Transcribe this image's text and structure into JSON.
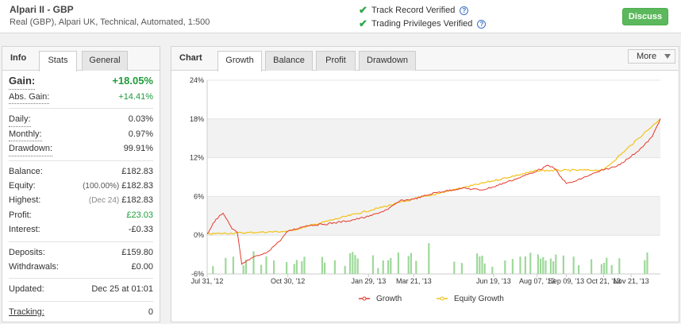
{
  "header": {
    "account_name": "Alpari II - GBP",
    "account_details": "Real (GBP), Alpari UK, Technical, Automated, 1:500",
    "verified_1": "Track Record Verified",
    "verified_2": "Trading Privileges Verified",
    "help_glyph": "?",
    "discuss_label": "Discuss"
  },
  "left": {
    "panel_label": "Info",
    "tabs": [
      "Stats",
      "General"
    ],
    "gain_label": "Gain:",
    "gain_value": "+18.05%",
    "abs_gain_label": "Abs. Gain:",
    "abs_gain_value": "+14.41%",
    "daily_label": "Daily:",
    "daily_value": "0.03%",
    "monthly_label": "Monthly:",
    "monthly_value": "0.97%",
    "drawdown_label": "Drawdown:",
    "drawdown_value": "99.91%",
    "balance_label": "Balance:",
    "balance_value": "£182.83",
    "equity_label": "Equity:",
    "equity_pct": "(100.00%)",
    "equity_value": "£182.83",
    "highest_label": "Highest:",
    "highest_date": "(Dec 24)",
    "highest_value": "£182.83",
    "profit_label": "Profit:",
    "profit_value": "£23.03",
    "interest_label": "Interest:",
    "interest_value": "-£0.33",
    "deposits_label": "Deposits:",
    "deposits_value": "£159.80",
    "withdrawals_label": "Withdrawals:",
    "withdrawals_value": "£0.00",
    "updated_label": "Updated:",
    "updated_value": "Dec 25 at 01:01",
    "tracking_label": "Tracking:",
    "tracking_value": "0"
  },
  "chart_panel": {
    "panel_label": "Chart",
    "tabs": [
      "Growth",
      "Balance",
      "Profit",
      "Drawdown"
    ],
    "more_label": "More"
  },
  "colors": {
    "growth": "#e53b2c",
    "equity": "#f2c218",
    "bars": "#9ed99a",
    "discuss": "#5cb85c"
  },
  "chart_data": {
    "type": "line",
    "ylim": [
      -6,
      24
    ],
    "y_ticks": [
      "24%",
      "18%",
      "12%",
      "6%",
      "0%",
      "-6%"
    ],
    "y_tick_values": [
      24,
      18,
      12,
      6,
      0,
      -6
    ],
    "x_ticks": [
      "Jul 31, '12",
      "Oct 30, '12",
      "Jan 29, '13",
      "Mar 21, '13",
      "Jun 19, '13",
      "Aug 07, '13",
      "Sep 09, '13",
      "Oct 21, '13",
      "Nov 21, '13"
    ],
    "x_range": [
      "Jul 31, '12",
      "Dec 24, '13"
    ],
    "legend": [
      "Growth",
      "Equity Growth"
    ],
    "legend_position": "bottom",
    "series": [
      {
        "name": "Growth",
        "points": [
          {
            "x": "Jul 31, '12",
            "y": 0.2
          },
          {
            "x": "Aug 10, '12",
            "y": 2.5
          },
          {
            "x": "Aug 18, '12",
            "y": 3.4
          },
          {
            "x": "Aug 28, '12",
            "y": 1.0
          },
          {
            "x": "Sep 03, '12",
            "y": 0.4
          },
          {
            "x": "Sep 08, '12",
            "y": -4.5
          },
          {
            "x": "Sep 20, '12",
            "y": -3.5
          },
          {
            "x": "Oct 05, '12",
            "y": -2.8
          },
          {
            "x": "Oct 20, '12",
            "y": -1.0
          },
          {
            "x": "Oct 30, '12",
            "y": 0.6
          },
          {
            "x": "Nov 20, '12",
            "y": 1.5
          },
          {
            "x": "Dec 10, '12",
            "y": 1.7
          },
          {
            "x": "Jan 05, '13",
            "y": 2.2
          },
          {
            "x": "Jan 29, '13",
            "y": 2.9
          },
          {
            "x": "Feb 20, '13",
            "y": 4.0
          },
          {
            "x": "Mar 05, '13",
            "y": 5.3
          },
          {
            "x": "Mar 21, '13",
            "y": 5.6
          },
          {
            "x": "Apr 15, '13",
            "y": 6.6
          },
          {
            "x": "May 15, '13",
            "y": 7.3
          },
          {
            "x": "Jun 05, '13",
            "y": 7.0
          },
          {
            "x": "Jun 19, '13",
            "y": 7.5
          },
          {
            "x": "Jul 05, '13",
            "y": 8.3
          },
          {
            "x": "Jul 20, '13",
            "y": 9.0
          },
          {
            "x": "Aug 07, '13",
            "y": 10.0
          },
          {
            "x": "Aug 20, '13",
            "y": 10.8
          },
          {
            "x": "Aug 28, '13",
            "y": 10.2
          },
          {
            "x": "Sep 03, '13",
            "y": 9.0
          },
          {
            "x": "Sep 09, '13",
            "y": 8.0
          },
          {
            "x": "Sep 20, '13",
            "y": 8.4
          },
          {
            "x": "Oct 05, '13",
            "y": 9.3
          },
          {
            "x": "Oct 21, '13",
            "y": 10.1
          },
          {
            "x": "Nov 05, '13",
            "y": 10.7
          },
          {
            "x": "Nov 21, '13",
            "y": 12.2
          },
          {
            "x": "Dec 05, '13",
            "y": 13.8
          },
          {
            "x": "Dec 15, '13",
            "y": 15.3
          },
          {
            "x": "Dec 24, '13",
            "y": 18.05
          }
        ]
      },
      {
        "name": "Equity Growth",
        "points": [
          {
            "x": "Jul 31, '12",
            "y": 0.2
          },
          {
            "x": "Oct 30, '12",
            "y": 0.6
          },
          {
            "x": "Mar 21, '13",
            "y": 5.6
          },
          {
            "x": "Aug 07, '13",
            "y": 10.0
          },
          {
            "x": "Oct 21, '13",
            "y": 10.1
          },
          {
            "x": "Dec 24, '13",
            "y": 18.05
          }
        ]
      }
    ]
  }
}
